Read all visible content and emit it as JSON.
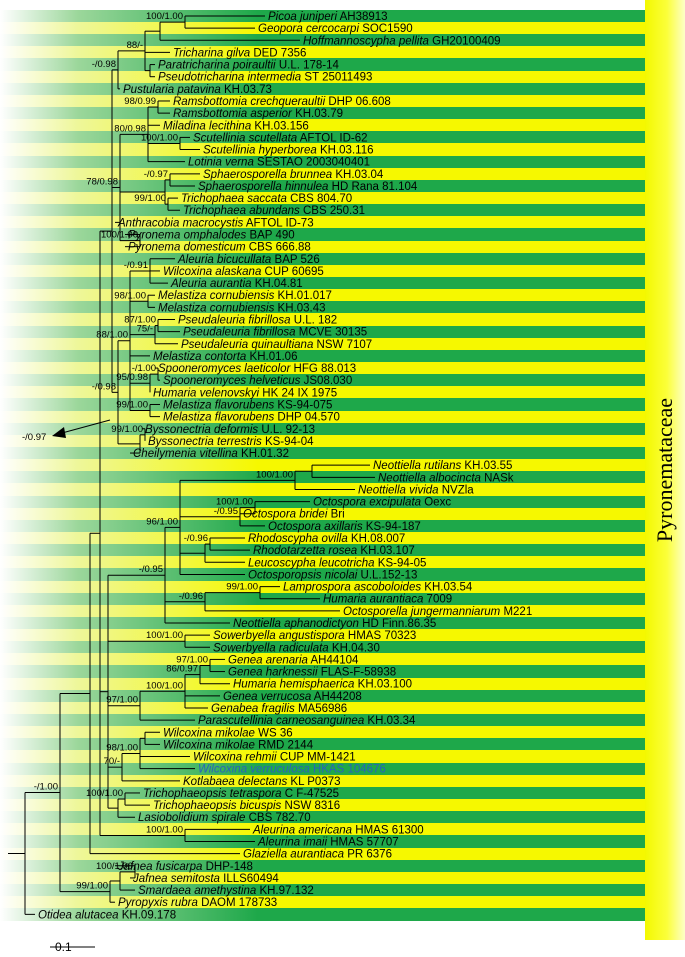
{
  "family_label": "Pyronemataceae",
  "scale": {
    "label": "0.1",
    "value": 0.1
  },
  "colors": {
    "tree": "#000000",
    "highlight_taxon": "#2a63b7",
    "band_green": "#1ea84a",
    "band_yellow": "#f6f800"
  },
  "taxa": [
    {
      "name": "Picoa juniperi",
      "code": "AH38913"
    },
    {
      "name": "Geopora cercocarpi",
      "code": "SOC1590"
    },
    {
      "name": "Hoffmannoscypha pellita",
      "code": "GH20100409"
    },
    {
      "name": "Tricharina gilva",
      "code": "DED 7356"
    },
    {
      "name": "Paratricharina poiraultii",
      "code": "U.L. 178-14"
    },
    {
      "name": "Pseudotricharina intermedia",
      "code": "ST 25011493"
    },
    {
      "name": "Pustularia patavina",
      "code": "KH.03.73"
    },
    {
      "name": "Ramsbottomia crechqueraultii",
      "code": "DHP 06.608"
    },
    {
      "name": "Ramsbottomia asperior",
      "code": "KH.03.79"
    },
    {
      "name": "Miladina lecithina",
      "code": "KH.03.156"
    },
    {
      "name": "Scutellinia scutellata",
      "code": "AFTOL ID-62"
    },
    {
      "name": "Scutellinia hyperborea",
      "code": "KH.03.116"
    },
    {
      "name": "Lotinia verna",
      "code": "SESTAO 2003040401"
    },
    {
      "name": "Sphaerosporella brunnea",
      "code": "KH.03.04"
    },
    {
      "name": "Sphaerosporella hinnulea",
      "code": "HD Rana 81.104"
    },
    {
      "name": "Trichophaea saccata",
      "code": "CBS 804.70"
    },
    {
      "name": "Trichophaea abundans",
      "code": "CBS 250.31"
    },
    {
      "name": "Anthracobia macrocystis",
      "code": "AFTOL ID-73"
    },
    {
      "name": "Pyronema omphalodes",
      "code": "BAP 490"
    },
    {
      "name": "Pyronema domesticum",
      "code": "CBS 666.88"
    },
    {
      "name": "Aleuria bicucullata",
      "code": "BAP 526"
    },
    {
      "name": "Wilcoxina alaskana",
      "code": "CUP 60695"
    },
    {
      "name": "Aleuria aurantia",
      "code": "KH.04.81"
    },
    {
      "name": "Melastiza cornubiensis",
      "code": "KH.01.017"
    },
    {
      "name": "Melastiza cornubiensis",
      "code": "KH.03.43"
    },
    {
      "name": "Pseudaleuria fibrillosa",
      "code": "U.L. 182"
    },
    {
      "name": "Pseudaleuria fibrillosa",
      "code": "MCVE 30135"
    },
    {
      "name": "Pseudaleuria quinaultiana",
      "code": "NSW 7107"
    },
    {
      "name": "Melastiza contorta",
      "code": "KH.01.06"
    },
    {
      "name": "Spooneromyces laeticolor",
      "code": "HFG 88.013"
    },
    {
      "name": "Spooneromyces helveticus",
      "code": "JS08.030"
    },
    {
      "name": "Humaria velenovskyi",
      "code": "HK 24 IX 1975"
    },
    {
      "name": "Melastiza flavorubens",
      "code": "KS-94-075"
    },
    {
      "name": "Melastiza flavorubens",
      "code": "DHP 04.570"
    },
    {
      "name": "Byssonectria deformis",
      "code": "U.L. 92-13"
    },
    {
      "name": "Byssonectria terrestris",
      "code": "KS-94-04"
    },
    {
      "name": "Cheilymenia vitellina",
      "code": "KH.01.32"
    },
    {
      "name": "Neottiella rutilans",
      "code": "KH.03.55"
    },
    {
      "name": "Neottiella albocincta",
      "code": "NASk"
    },
    {
      "name": "Neottiella vivida",
      "code": "NVZla"
    },
    {
      "name": "Octospora excipulata",
      "code": "Oexc"
    },
    {
      "name": "Octospora bridei",
      "code": "Bri"
    },
    {
      "name": "Octospora axillaris",
      "code": "KS-94-187"
    },
    {
      "name": "Rhodoscypha ovilla",
      "code": "KH.08.007"
    },
    {
      "name": "Rhodotarzetta rosea",
      "code": "KH.03.107"
    },
    {
      "name": "Leucoscypha leucotricha",
      "code": "KS-94-05"
    },
    {
      "name": "Octosporopsis nicolai",
      "code": "U.L.152-13"
    },
    {
      "name": "Lamprospora ascoboloides",
      "code": "KH.03.54"
    },
    {
      "name": "Humaria aurantiaca",
      "code": "7009"
    },
    {
      "name": "Octosporella jungermanniarum",
      "code": "M221"
    },
    {
      "name": "Neottiella aphanodictyon",
      "code": "HD Finn.86.35"
    },
    {
      "name": "Sowerbyella angustispora",
      "code": "HMAS 70323"
    },
    {
      "name": "Sowerbyella radiculata",
      "code": "KH.04.30"
    },
    {
      "name": "Genea arenaria",
      "code": "AH44104"
    },
    {
      "name": "Genea harknessii",
      "code": "FLAS-F-58938"
    },
    {
      "name": "Humaria hemisphaerica",
      "code": "KH.03.100"
    },
    {
      "name": "Genea verrucosa",
      "code": "AH44208"
    },
    {
      "name": "Genabea fragilis",
      "code": "MA56986"
    },
    {
      "name": "Parascutellinia carneosanguinea",
      "code": "KH.03.34"
    },
    {
      "name": "Wilcoxina mikolae",
      "code": "WS 36"
    },
    {
      "name": "Wilcoxina mikolae",
      "code": "RMD 2144"
    },
    {
      "name": "Wilcoxina rehmii",
      "code": "CUP MM-1421"
    },
    {
      "name": "Wilcoxina verruculosa",
      "code": "HKAS 104676",
      "highlight": true
    },
    {
      "name": "Kotlabaea delectans",
      "code": "KL P0373"
    },
    {
      "name": "Trichophaeopsis tetraspora",
      "code": "C F-47525"
    },
    {
      "name": "Trichophaeopsis bicuspis",
      "code": "NSW 8316"
    },
    {
      "name": "Lasiobolidium spirale",
      "code": "CBS 782.70"
    },
    {
      "name": "Aleurina americana",
      "code": "HMAS 61300"
    },
    {
      "name": "Aleurina imaii",
      "code": "HMAS 57707"
    },
    {
      "name": "Glaziella aurantiaca",
      "code": "PR 6376"
    },
    {
      "name": "Jafnea fusicarpa",
      "code": "DHP-148"
    },
    {
      "name": "Jafnea semitosta",
      "code": "ILLS60494"
    },
    {
      "name": "Smardaea amethystina",
      "code": "KH.97.132"
    },
    {
      "name": "Pyropyxis rubra",
      "code": "DAOM 178733"
    },
    {
      "name": "Otidea alutacea",
      "code": "KH.09.178"
    }
  ],
  "support_labels": [
    "100/1.00",
    "100/1.00",
    "88/-",
    "-/0.98",
    "98/0.99",
    "80/0.98",
    "100/1.00",
    "78/0.98",
    "-/0.97",
    "99/1.00",
    "95/1.00",
    "100/1.00",
    "-/0.91",
    "-/0.98",
    "98/1.00",
    "87/1.00",
    "75/-",
    "88/1.00",
    "-/1.00",
    "95/0.98",
    "99/1.00",
    "99/1.00",
    "-/0.97",
    "100/1.00",
    "-/0.95",
    "100/1.00",
    "-/0.96",
    "96/1.00",
    "99/1.00",
    "-/0.96",
    "-/0.95",
    "100/1.00",
    "97/1.00",
    "86/0.97",
    "100/1.00",
    "97/1.00",
    "70/-",
    "98/1.00",
    "100/1.00",
    "100/1.00",
    "-/1.00",
    "100/1.00",
    "99/1.00"
  ]
}
